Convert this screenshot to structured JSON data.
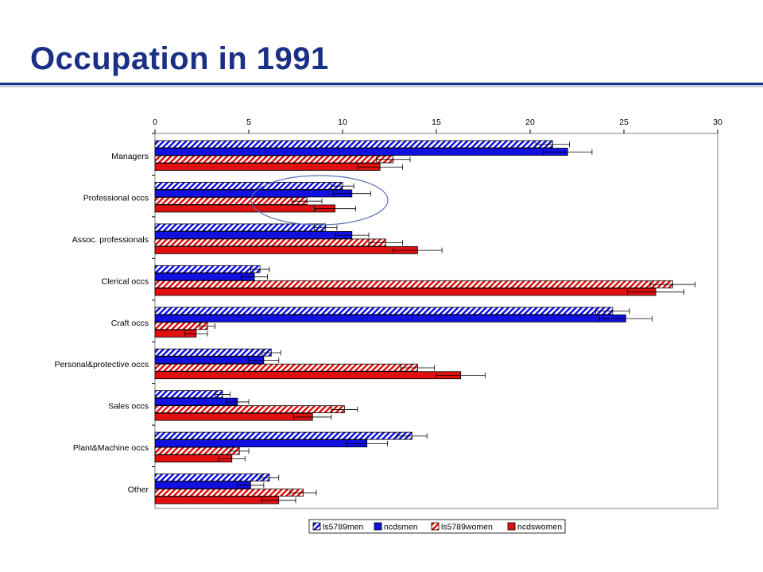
{
  "slide": {
    "title": "Occupation in 1991"
  },
  "colors": {
    "title": "#1a2f86",
    "blue": "#1010e0",
    "red": "#e01010",
    "ellipse": "#5a6fb8"
  },
  "chart_data": {
    "type": "bar",
    "orientation": "horizontal",
    "title": "",
    "xlabel": "",
    "ylabel": "",
    "xlim": [
      0,
      30
    ],
    "xticks": [
      0,
      5,
      10,
      15,
      20,
      25,
      30
    ],
    "axis_position": "top",
    "grid": false,
    "legend_position": "bottom",
    "categories": [
      "Managers",
      "Professional occs",
      "Assoc. professionals",
      "Clerical occs",
      "Craft occs",
      "Personal&protective occs",
      "Sales occs",
      "Plant&Machine occs",
      "Other"
    ],
    "series": [
      {
        "name": "ls5789men",
        "color": "#1010e0",
        "pattern": "hatched",
        "values": [
          21.2,
          10.0,
          9.1,
          5.6,
          24.4,
          6.2,
          3.6,
          13.7,
          6.1
        ],
        "error": [
          0.9,
          0.6,
          0.6,
          0.5,
          0.9,
          0.5,
          0.4,
          0.8,
          0.5
        ]
      },
      {
        "name": "ncdsmen",
        "color": "#1010e0",
        "pattern": "solid",
        "values": [
          22.0,
          10.5,
          10.5,
          5.3,
          25.1,
          5.8,
          4.4,
          11.3,
          5.1
        ],
        "error": [
          1.3,
          1.0,
          0.9,
          0.7,
          1.4,
          0.8,
          0.6,
          1.1,
          0.7
        ]
      },
      {
        "name": "ls5789women",
        "color": "#e01010",
        "pattern": "hatched",
        "values": [
          12.7,
          8.1,
          12.3,
          27.6,
          2.8,
          14.0,
          10.1,
          4.5,
          7.9
        ],
        "error": [
          0.9,
          0.8,
          0.9,
          1.2,
          0.4,
          0.9,
          0.7,
          0.5,
          0.7
        ]
      },
      {
        "name": "ncdswomen",
        "color": "#e01010",
        "pattern": "solid",
        "values": [
          12.0,
          9.6,
          14.0,
          26.7,
          2.2,
          16.3,
          8.4,
          4.1,
          6.6
        ],
        "error": [
          1.2,
          1.1,
          1.3,
          1.5,
          0.6,
          1.3,
          1.0,
          0.7,
          0.9
        ]
      }
    ]
  }
}
